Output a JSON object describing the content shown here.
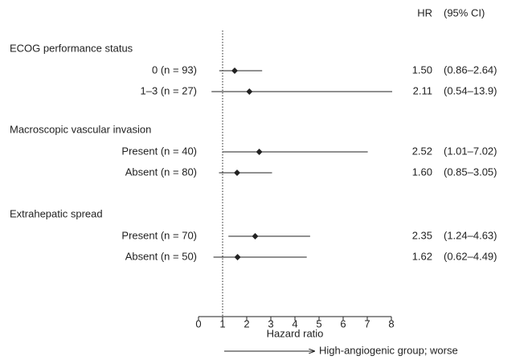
{
  "chart_data": {
    "type": "forest",
    "hr_header": "HR",
    "ci_header": "(95% CI)",
    "xlabel": "Hazard ratio",
    "annotation": "High-angiogenic group; worse",
    "xlim": [
      0,
      8
    ],
    "xticks": [
      0,
      1,
      2,
      3,
      4,
      5,
      6,
      7,
      8
    ],
    "reference": 1,
    "color": "#222222",
    "groups": [
      {
        "name": "ECOG performance status",
        "rows": [
          {
            "label": "0 (n = 93)",
            "hr": 1.5,
            "hr_label": "1.50",
            "ci_low": 0.86,
            "ci_high": 2.64,
            "ci_label": "(0.86–2.64)"
          },
          {
            "label": "1–3 (n = 27)",
            "hr": 2.11,
            "hr_label": "2.11",
            "ci_low": 0.54,
            "ci_high": 13.9,
            "ci_label": "(0.54–13.9)"
          }
        ]
      },
      {
        "name": "Macroscopic vascular invasion",
        "rows": [
          {
            "label": "Present (n = 40)",
            "hr": 2.52,
            "hr_label": "2.52",
            "ci_low": 1.01,
            "ci_high": 7.02,
            "ci_label": "(1.01–7.02)"
          },
          {
            "label": "Absent (n = 80)",
            "hr": 1.6,
            "hr_label": "1.60",
            "ci_low": 0.85,
            "ci_high": 3.05,
            "ci_label": "(0.85–3.05)"
          }
        ]
      },
      {
        "name": "Extrahepatic spread",
        "rows": [
          {
            "label": "Present (n = 70)",
            "hr": 2.35,
            "hr_label": "2.35",
            "ci_low": 1.24,
            "ci_high": 4.63,
            "ci_label": "(1.24–4.63)"
          },
          {
            "label": "Absent (n = 50)",
            "hr": 1.62,
            "hr_label": "1.62",
            "ci_low": 0.62,
            "ci_high": 4.49,
            "ci_label": "(0.62–4.49)"
          }
        ]
      }
    ]
  }
}
